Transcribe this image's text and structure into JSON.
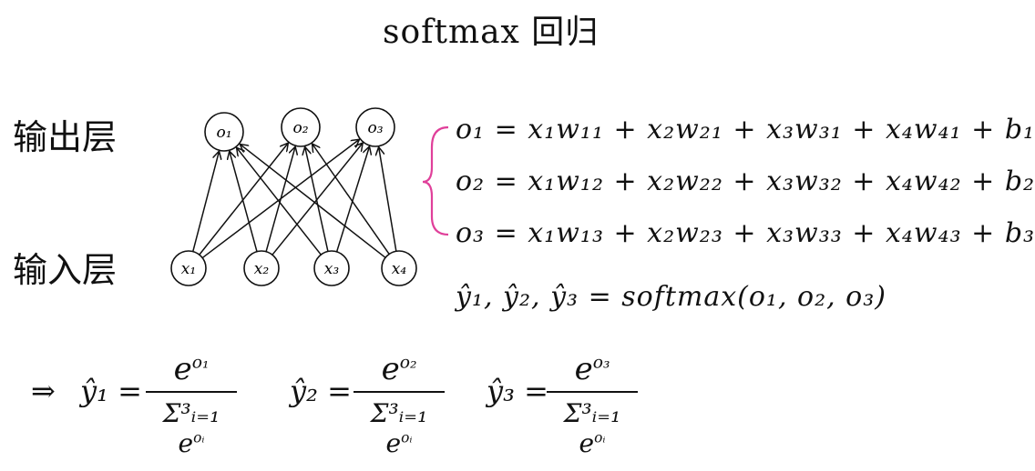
{
  "title": "softmax 回归",
  "layers": {
    "output_label": "输出层",
    "input_label": "输入层"
  },
  "nodes": {
    "outputs": [
      "o₁",
      "o₂",
      "o₃"
    ],
    "inputs": [
      "x₁",
      "x₂",
      "x₃",
      "x₄"
    ]
  },
  "equations": {
    "o1": "o₁ = x₁w₁₁ + x₂w₂₁ + x₃w₃₁ + x₄w₄₁ + b₁",
    "o2": "o₂ = x₁w₁₂ + x₂w₂₂ + x₃w₃₂ + x₄w₄₂ + b₂",
    "o3": "o₃ = x₁w₁₃ + x₂w₂₃ + x₃w₃₃ + x₄w₄₃ + b₃",
    "softmax": "ŷ₁, ŷ₂, ŷ₃ = softmax(o₁, o₂, o₃)"
  },
  "formulas": {
    "implies": "⇒",
    "y1": {
      "lhs": "ŷ₁ =",
      "num_base": "e",
      "num_exp": "o₁",
      "den_sum": "Σ³ᵢ₌₁",
      "den_base": "e",
      "den_exp": "oᵢ"
    },
    "y2": {
      "lhs": "ŷ₂ =",
      "num_base": "e",
      "num_exp": "o₂",
      "den_sum": "Σ³ᵢ₌₁",
      "den_base": "e",
      "den_exp": "oᵢ"
    },
    "y3": {
      "lhs": "ŷ₃ =",
      "num_base": "e",
      "num_exp": "o₃",
      "den_sum": "Σ³ᵢ₌₁",
      "den_base": "e",
      "den_exp": "oᵢ"
    }
  },
  "colors": {
    "brace": "#e0409a",
    "ink": "#111111"
  }
}
